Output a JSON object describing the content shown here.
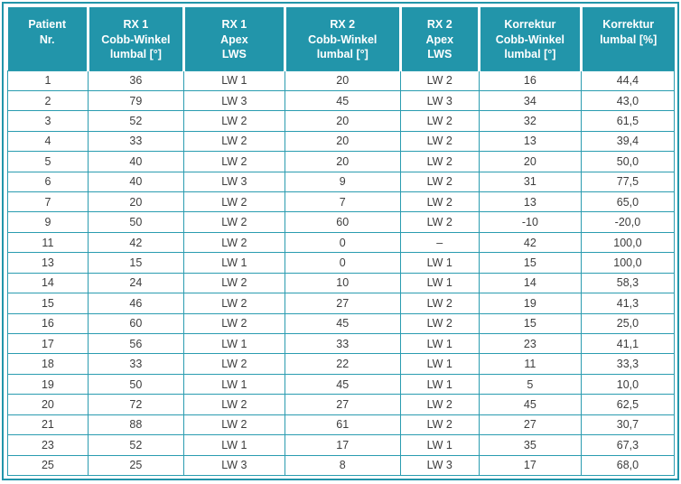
{
  "colors": {
    "header_bg": "#2295aa",
    "header_text": "#ffffff",
    "grid_line": "#2a9cb0",
    "body_text": "#3d3d3d",
    "page_bg": "#ffffff"
  },
  "table": {
    "columns": [
      {
        "id": "patient_nr",
        "label": "Patient\nNr.",
        "width": "12.04%"
      },
      {
        "id": "rx1_cobb",
        "label": "RX 1\nCobb-Winkel\nlumbal [°]",
        "width": "14.37%"
      },
      {
        "id": "rx1_apex",
        "label": "RX 1\nApex\nLWS",
        "width": "15.17%"
      },
      {
        "id": "rx2_cobb",
        "label": "RX 2\nCobb-Winkel\nlumbal [°]",
        "width": "17.32%"
      },
      {
        "id": "rx2_apex",
        "label": "RX 2\nApex\nLWS",
        "width": "11.82%"
      },
      {
        "id": "korrektur_cobb",
        "label": "Korrektur\nCobb-Winkel\nlumbal [°]",
        "width": "15.31%"
      },
      {
        "id": "korrektur_pct",
        "label": "Korrektur\nlumbal [%]",
        "width": "13.97%"
      }
    ],
    "rows": [
      [
        "1",
        "36",
        "LW 1",
        "20",
        "LW 2",
        "16",
        "44,4"
      ],
      [
        "2",
        "79",
        "LW 3",
        "45",
        "LW 3",
        "34",
        "43,0"
      ],
      [
        "3",
        "52",
        "LW 2",
        "20",
        "LW 2",
        "32",
        "61,5"
      ],
      [
        "4",
        "33",
        "LW 2",
        "20",
        "LW 2",
        "13",
        "39,4"
      ],
      [
        "5",
        "40",
        "LW 2",
        "20",
        "LW 2",
        "20",
        "50,0"
      ],
      [
        "6",
        "40",
        "LW 3",
        "9",
        "LW 2",
        "31",
        "77,5"
      ],
      [
        "7",
        "20",
        "LW 2",
        "7",
        "LW 2",
        "13",
        "65,0"
      ],
      [
        "9",
        "50",
        "LW 2",
        "60",
        "LW 2",
        "-10",
        "-20,0"
      ],
      [
        "11",
        "42",
        "LW 2",
        "0",
        "–",
        "42",
        "100,0"
      ],
      [
        "13",
        "15",
        "LW 1",
        "0",
        "LW 1",
        "15",
        "100,0"
      ],
      [
        "14",
        "24",
        "LW 2",
        "10",
        "LW 1",
        "14",
        "58,3"
      ],
      [
        "15",
        "46",
        "LW 2",
        "27",
        "LW 2",
        "19",
        "41,3"
      ],
      [
        "16",
        "60",
        "LW 2",
        "45",
        "LW 2",
        "15",
        "25,0"
      ],
      [
        "17",
        "56",
        "LW 1",
        "33",
        "LW 1",
        "23",
        "41,1"
      ],
      [
        "18",
        "33",
        "LW 2",
        "22",
        "LW 1",
        "11",
        "33,3"
      ],
      [
        "19",
        "50",
        "LW 1",
        "45",
        "LW 1",
        "5",
        "10,0"
      ],
      [
        "20",
        "72",
        "LW 2",
        "27",
        "LW 2",
        "45",
        "62,5"
      ],
      [
        "21",
        "88",
        "LW 2",
        "61",
        "LW 2",
        "27",
        "30,7"
      ],
      [
        "23",
        "52",
        "LW 1",
        "17",
        "LW 1",
        "35",
        "67,3"
      ],
      [
        "25",
        "25",
        "LW 3",
        "8",
        "LW 3",
        "17",
        "68,0"
      ]
    ]
  },
  "chart_data": {
    "type": "table",
    "title": "",
    "column_headers": [
      "Patient Nr.",
      "RX 1 Cobb-Winkel lumbal [°]",
      "RX 1 Apex LWS",
      "RX 2 Cobb-Winkel lumbal [°]",
      "RX 2 Apex LWS",
      "Korrektur Cobb-Winkel lumbal [°]",
      "Korrektur lumbal [%]"
    ],
    "rows": [
      [
        1,
        36,
        "LW 1",
        20,
        "LW 2",
        16,
        44.4
      ],
      [
        2,
        79,
        "LW 3",
        45,
        "LW 3",
        34,
        43.0
      ],
      [
        3,
        52,
        "LW 2",
        20,
        "LW 2",
        32,
        61.5
      ],
      [
        4,
        33,
        "LW 2",
        20,
        "LW 2",
        13,
        39.4
      ],
      [
        5,
        40,
        "LW 2",
        20,
        "LW 2",
        20,
        50.0
      ],
      [
        6,
        40,
        "LW 3",
        9,
        "LW 2",
        31,
        77.5
      ],
      [
        7,
        20,
        "LW 2",
        7,
        "LW 2",
        13,
        65.0
      ],
      [
        9,
        50,
        "LW 2",
        60,
        "LW 2",
        -10,
        -20.0
      ],
      [
        11,
        42,
        "LW 2",
        0,
        "–",
        42,
        100.0
      ],
      [
        13,
        15,
        "LW 1",
        0,
        "LW 1",
        15,
        100.0
      ],
      [
        14,
        24,
        "LW 2",
        10,
        "LW 1",
        14,
        58.3
      ],
      [
        15,
        46,
        "LW 2",
        27,
        "LW 2",
        19,
        41.3
      ],
      [
        16,
        60,
        "LW 2",
        45,
        "LW 2",
        15,
        25.0
      ],
      [
        17,
        56,
        "LW 1",
        33,
        "LW 1",
        23,
        41.1
      ],
      [
        18,
        33,
        "LW 2",
        22,
        "LW 1",
        11,
        33.3
      ],
      [
        19,
        50,
        "LW 1",
        45,
        "LW 1",
        5,
        10.0
      ],
      [
        20,
        72,
        "LW 2",
        27,
        "LW 2",
        45,
        62.5
      ],
      [
        21,
        88,
        "LW 2",
        61,
        "LW 2",
        27,
        30.7
      ],
      [
        23,
        52,
        "LW 1",
        17,
        "LW 1",
        35,
        67.3
      ],
      [
        25,
        25,
        "LW 3",
        8,
        "LW 3",
        17,
        68.0
      ]
    ]
  }
}
